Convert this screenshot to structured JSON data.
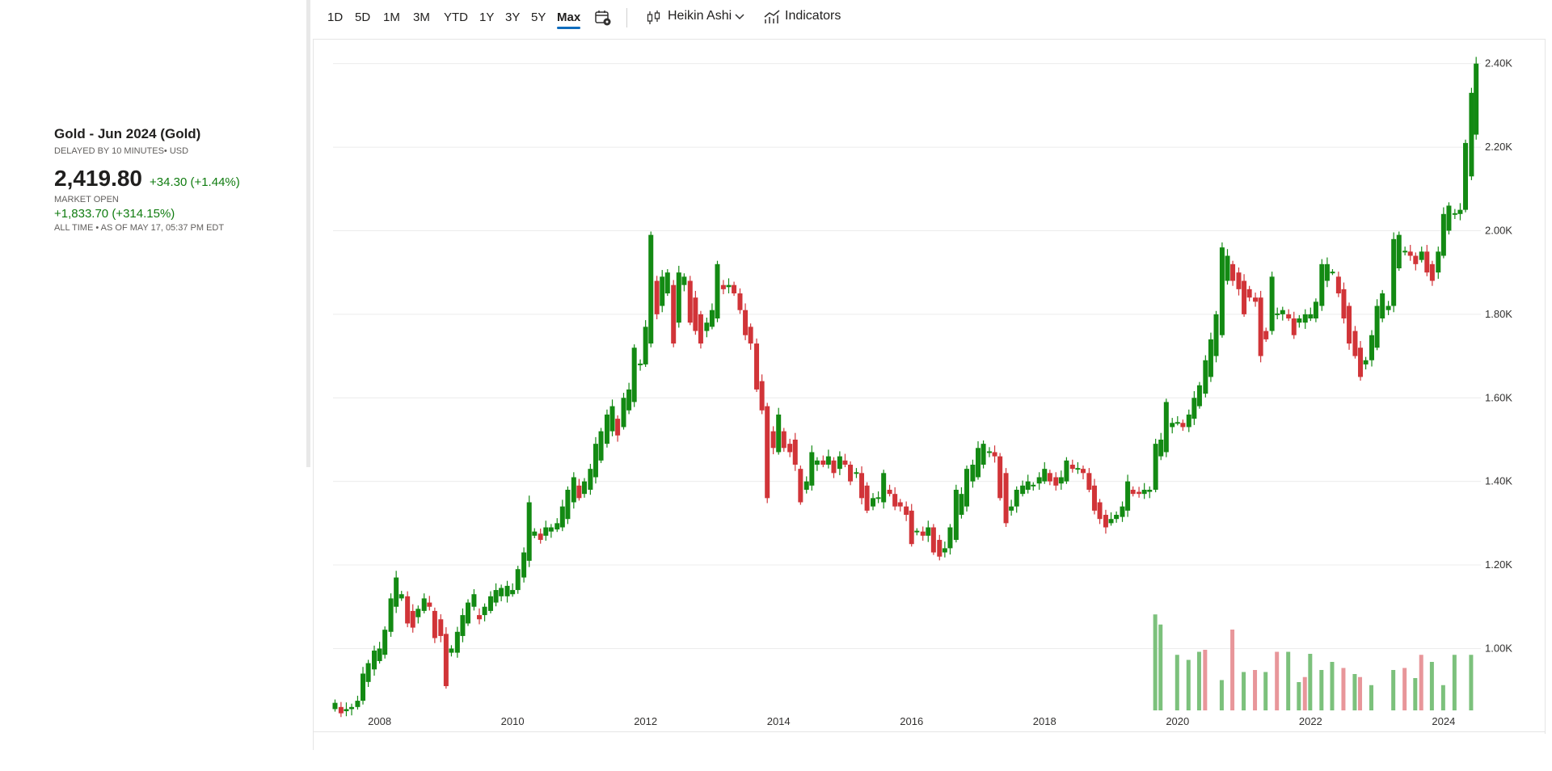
{
  "instrument": {
    "title": "Gold - Jun 2024 (Gold)",
    "subtitle": "DELAYED BY 10 MINUTES• USD",
    "price": "2,419.80",
    "change": "+34.30 (+1.44%)",
    "market_status": "MARKET OPEN",
    "alltime_change": "+1,833.70 (+314.15%)",
    "alltime_note": "ALL TIME • AS OF MAY 17, 05:37 PM EDT"
  },
  "toolbar": {
    "ranges": [
      "1D",
      "5D",
      "1M",
      "3M",
      "YTD",
      "1Y",
      "3Y",
      "5Y",
      "Max"
    ],
    "active_range": "Max",
    "chart_type_icon": "candlestick-icon",
    "chart_type_label": "Heikin Ashi",
    "indicators_icon": "indicators-icon",
    "indicators_label": "Indicators",
    "calendar_icon": "calendar-settings-icon"
  },
  "colors": {
    "up": "#138a13",
    "down": "#d13438",
    "volume_up": "#7cc17c",
    "volume_down": "#e8969a",
    "grid": "#ececec",
    "accent": "#0f6cbd",
    "positive_text": "#107c10"
  },
  "chart_data": {
    "type": "candlestick",
    "subtype": "Heikin Ashi",
    "y_axis_position": "right",
    "ylim": [
      850,
      2440
    ],
    "y_ticks": [
      {
        "value": 1000,
        "label": "1.00K"
      },
      {
        "value": 1200,
        "label": "1.20K"
      },
      {
        "value": 1400,
        "label": "1.40K"
      },
      {
        "value": 1600,
        "label": "1.60K"
      },
      {
        "value": 1800,
        "label": "1.80K"
      },
      {
        "value": 2000,
        "label": "2.00K"
      },
      {
        "value": 2200,
        "label": "2.20K"
      },
      {
        "value": 2400,
        "label": "2.40K"
      }
    ],
    "x_ticks": [
      "2008",
      "2010",
      "2012",
      "2014",
      "2016",
      "2018",
      "2020",
      "2022",
      "2024"
    ],
    "x_range": [
      2007.3,
      2024.5
    ],
    "grid": true,
    "candles": [
      {
        "t": 2007.33,
        "o": 855,
        "c": 870
      },
      {
        "t": 2007.42,
        "o": 860,
        "c": 845
      },
      {
        "t": 2007.5,
        "o": 850,
        "c": 855
      },
      {
        "t": 2007.58,
        "o": 855,
        "c": 860
      },
      {
        "t": 2007.67,
        "o": 860,
        "c": 875
      },
      {
        "t": 2007.75,
        "o": 875,
        "c": 940
      },
      {
        "t": 2007.83,
        "o": 920,
        "c": 965
      },
      {
        "t": 2007.92,
        "o": 950,
        "c": 995
      },
      {
        "t": 2008.0,
        "o": 970,
        "c": 1000
      },
      {
        "t": 2008.08,
        "o": 985,
        "c": 1045
      },
      {
        "t": 2008.17,
        "o": 1040,
        "c": 1120
      },
      {
        "t": 2008.25,
        "o": 1100,
        "c": 1170
      },
      {
        "t": 2008.33,
        "o": 1120,
        "c": 1130
      },
      {
        "t": 2008.42,
        "o": 1125,
        "c": 1060
      },
      {
        "t": 2008.5,
        "o": 1090,
        "c": 1050
      },
      {
        "t": 2008.58,
        "o": 1075,
        "c": 1095
      },
      {
        "t": 2008.67,
        "o": 1090,
        "c": 1120
      },
      {
        "t": 2008.75,
        "o": 1110,
        "c": 1100
      },
      {
        "t": 2008.83,
        "o": 1090,
        "c": 1025
      },
      {
        "t": 2008.92,
        "o": 1070,
        "c": 1030
      },
      {
        "t": 2009.0,
        "o": 1035,
        "c": 910
      },
      {
        "t": 2009.08,
        "o": 990,
        "c": 1000
      },
      {
        "t": 2009.17,
        "o": 990,
        "c": 1040
      },
      {
        "t": 2009.25,
        "o": 1030,
        "c": 1080
      },
      {
        "t": 2009.33,
        "o": 1060,
        "c": 1110
      },
      {
        "t": 2009.42,
        "o": 1100,
        "c": 1130
      },
      {
        "t": 2009.5,
        "o": 1080,
        "c": 1070
      },
      {
        "t": 2009.58,
        "o": 1080,
        "c": 1100
      },
      {
        "t": 2009.67,
        "o": 1090,
        "c": 1125
      },
      {
        "t": 2009.75,
        "o": 1110,
        "c": 1140
      },
      {
        "t": 2009.83,
        "o": 1125,
        "c": 1145
      },
      {
        "t": 2009.92,
        "o": 1125,
        "c": 1150
      },
      {
        "t": 2010.0,
        "o": 1130,
        "c": 1140
      },
      {
        "t": 2010.08,
        "o": 1140,
        "c": 1190
      },
      {
        "t": 2010.17,
        "o": 1170,
        "c": 1230
      },
      {
        "t": 2010.25,
        "o": 1210,
        "c": 1350
      },
      {
        "t": 2010.33,
        "o": 1270,
        "c": 1280
      },
      {
        "t": 2010.42,
        "o": 1275,
        "c": 1260
      },
      {
        "t": 2010.5,
        "o": 1270,
        "c": 1290
      },
      {
        "t": 2010.58,
        "o": 1280,
        "c": 1290
      },
      {
        "t": 2010.67,
        "o": 1285,
        "c": 1300
      },
      {
        "t": 2010.75,
        "o": 1290,
        "c": 1340
      },
      {
        "t": 2010.83,
        "o": 1310,
        "c": 1380
      },
      {
        "t": 2010.92,
        "o": 1350,
        "c": 1410
      },
      {
        "t": 2011.0,
        "o": 1390,
        "c": 1360
      },
      {
        "t": 2011.08,
        "o": 1370,
        "c": 1400
      },
      {
        "t": 2011.17,
        "o": 1380,
        "c": 1430
      },
      {
        "t": 2011.25,
        "o": 1410,
        "c": 1490
      },
      {
        "t": 2011.33,
        "o": 1450,
        "c": 1520
      },
      {
        "t": 2011.42,
        "o": 1490,
        "c": 1560
      },
      {
        "t": 2011.5,
        "o": 1520,
        "c": 1580
      },
      {
        "t": 2011.58,
        "o": 1550,
        "c": 1510
      },
      {
        "t": 2011.67,
        "o": 1530,
        "c": 1600
      },
      {
        "t": 2011.75,
        "o": 1570,
        "c": 1620
      },
      {
        "t": 2011.83,
        "o": 1590,
        "c": 1720
      },
      {
        "t": 2011.92,
        "o": 1680,
        "c": 1680
      },
      {
        "t": 2012.0,
        "o": 1680,
        "c": 1770
      },
      {
        "t": 2012.08,
        "o": 1730,
        "c": 1990
      },
      {
        "t": 2012.17,
        "o": 1880,
        "c": 1800
      },
      {
        "t": 2012.25,
        "o": 1820,
        "c": 1890
      },
      {
        "t": 2012.33,
        "o": 1850,
        "c": 1900
      },
      {
        "t": 2012.42,
        "o": 1870,
        "c": 1730
      },
      {
        "t": 2012.5,
        "o": 1780,
        "c": 1900
      },
      {
        "t": 2012.58,
        "o": 1870,
        "c": 1890
      },
      {
        "t": 2012.67,
        "o": 1880,
        "c": 1780
      },
      {
        "t": 2012.75,
        "o": 1840,
        "c": 1760
      },
      {
        "t": 2012.83,
        "o": 1800,
        "c": 1730
      },
      {
        "t": 2012.92,
        "o": 1760,
        "c": 1780
      },
      {
        "t": 2013.0,
        "o": 1770,
        "c": 1810
      },
      {
        "t": 2013.08,
        "o": 1790,
        "c": 1920
      },
      {
        "t": 2013.17,
        "o": 1870,
        "c": 1860
      },
      {
        "t": 2013.25,
        "o": 1865,
        "c": 1870
      },
      {
        "t": 2013.33,
        "o": 1870,
        "c": 1850
      },
      {
        "t": 2013.42,
        "o": 1850,
        "c": 1810
      },
      {
        "t": 2013.5,
        "o": 1810,
        "c": 1750
      },
      {
        "t": 2013.58,
        "o": 1770,
        "c": 1730
      },
      {
        "t": 2013.67,
        "o": 1730,
        "c": 1620
      },
      {
        "t": 2013.75,
        "o": 1640,
        "c": 1570
      },
      {
        "t": 2013.83,
        "o": 1580,
        "c": 1360
      },
      {
        "t": 2013.92,
        "o": 1520,
        "c": 1480
      },
      {
        "t": 2014.0,
        "o": 1470,
        "c": 1560
      },
      {
        "t": 2014.08,
        "o": 1520,
        "c": 1480
      },
      {
        "t": 2014.17,
        "o": 1490,
        "c": 1470
      },
      {
        "t": 2014.25,
        "o": 1500,
        "c": 1440
      },
      {
        "t": 2014.33,
        "o": 1430,
        "c": 1350
      },
      {
        "t": 2014.42,
        "o": 1380,
        "c": 1400
      },
      {
        "t": 2014.5,
        "o": 1390,
        "c": 1470
      },
      {
        "t": 2014.58,
        "o": 1440,
        "c": 1450
      },
      {
        "t": 2014.67,
        "o": 1450,
        "c": 1440
      },
      {
        "t": 2014.75,
        "o": 1440,
        "c": 1460
      },
      {
        "t": 2014.83,
        "o": 1450,
        "c": 1420
      },
      {
        "t": 2014.92,
        "o": 1430,
        "c": 1460
      },
      {
        "t": 2015.0,
        "o": 1450,
        "c": 1440
      },
      {
        "t": 2015.08,
        "o": 1440,
        "c": 1400
      },
      {
        "t": 2015.17,
        "o": 1420,
        "c": 1420
      },
      {
        "t": 2015.25,
        "o": 1420,
        "c": 1360
      },
      {
        "t": 2015.33,
        "o": 1390,
        "c": 1330
      },
      {
        "t": 2015.42,
        "o": 1340,
        "c": 1360
      },
      {
        "t": 2015.5,
        "o": 1360,
        "c": 1360
      },
      {
        "t": 2015.58,
        "o": 1350,
        "c": 1420
      },
      {
        "t": 2015.67,
        "o": 1380,
        "c": 1370
      },
      {
        "t": 2015.75,
        "o": 1370,
        "c": 1340
      },
      {
        "t": 2015.83,
        "o": 1350,
        "c": 1340
      },
      {
        "t": 2015.92,
        "o": 1340,
        "c": 1320
      },
      {
        "t": 2016.0,
        "o": 1330,
        "c": 1250
      },
      {
        "t": 2016.08,
        "o": 1280,
        "c": 1280
      },
      {
        "t": 2016.17,
        "o": 1280,
        "c": 1270
      },
      {
        "t": 2016.25,
        "o": 1270,
        "c": 1290
      },
      {
        "t": 2016.33,
        "o": 1290,
        "c": 1230
      },
      {
        "t": 2016.42,
        "o": 1260,
        "c": 1220
      },
      {
        "t": 2016.5,
        "o": 1230,
        "c": 1240
      },
      {
        "t": 2016.58,
        "o": 1240,
        "c": 1290
      },
      {
        "t": 2016.67,
        "o": 1260,
        "c": 1380
      },
      {
        "t": 2016.75,
        "o": 1320,
        "c": 1370
      },
      {
        "t": 2016.83,
        "o": 1340,
        "c": 1430
      },
      {
        "t": 2016.92,
        "o": 1400,
        "c": 1440
      },
      {
        "t": 2017.0,
        "o": 1410,
        "c": 1480
      },
      {
        "t": 2017.08,
        "o": 1440,
        "c": 1490
      },
      {
        "t": 2017.17,
        "o": 1470,
        "c": 1470
      },
      {
        "t": 2017.25,
        "o": 1470,
        "c": 1460
      },
      {
        "t": 2017.33,
        "o": 1460,
        "c": 1360
      },
      {
        "t": 2017.42,
        "o": 1420,
        "c": 1300
      },
      {
        "t": 2017.5,
        "o": 1330,
        "c": 1340
      },
      {
        "t": 2017.58,
        "o": 1340,
        "c": 1380
      },
      {
        "t": 2017.67,
        "o": 1370,
        "c": 1390
      },
      {
        "t": 2017.75,
        "o": 1380,
        "c": 1400
      },
      {
        "t": 2017.83,
        "o": 1390,
        "c": 1390
      },
      {
        "t": 2017.92,
        "o": 1395,
        "c": 1410
      },
      {
        "t": 2018.0,
        "o": 1400,
        "c": 1430
      },
      {
        "t": 2018.08,
        "o": 1420,
        "c": 1400
      },
      {
        "t": 2018.17,
        "o": 1410,
        "c": 1390
      },
      {
        "t": 2018.25,
        "o": 1395,
        "c": 1410
      },
      {
        "t": 2018.33,
        "o": 1400,
        "c": 1450
      },
      {
        "t": 2018.42,
        "o": 1440,
        "c": 1430
      },
      {
        "t": 2018.5,
        "o": 1430,
        "c": 1430
      },
      {
        "t": 2018.58,
        "o": 1430,
        "c": 1420
      },
      {
        "t": 2018.67,
        "o": 1420,
        "c": 1380
      },
      {
        "t": 2018.75,
        "o": 1390,
        "c": 1330
      },
      {
        "t": 2018.83,
        "o": 1350,
        "c": 1310
      },
      {
        "t": 2018.92,
        "o": 1320,
        "c": 1290
      },
      {
        "t": 2019.0,
        "o": 1300,
        "c": 1310
      },
      {
        "t": 2019.08,
        "o": 1310,
        "c": 1320
      },
      {
        "t": 2019.17,
        "o": 1315,
        "c": 1340
      },
      {
        "t": 2019.25,
        "o": 1330,
        "c": 1400
      },
      {
        "t": 2019.33,
        "o": 1380,
        "c": 1370
      },
      {
        "t": 2019.42,
        "o": 1375,
        "c": 1370
      },
      {
        "t": 2019.5,
        "o": 1370,
        "c": 1380
      },
      {
        "t": 2019.58,
        "o": 1375,
        "c": 1380
      },
      {
        "t": 2019.67,
        "o": 1380,
        "c": 1490
      },
      {
        "t": 2019.75,
        "o": 1460,
        "c": 1500
      },
      {
        "t": 2019.83,
        "o": 1470,
        "c": 1590
      },
      {
        "t": 2019.92,
        "o": 1530,
        "c": 1540
      },
      {
        "t": 2020.0,
        "o": 1540,
        "c": 1540
      },
      {
        "t": 2020.08,
        "o": 1540,
        "c": 1530
      },
      {
        "t": 2020.17,
        "o": 1530,
        "c": 1560
      },
      {
        "t": 2020.25,
        "o": 1550,
        "c": 1600
      },
      {
        "t": 2020.33,
        "o": 1580,
        "c": 1630
      },
      {
        "t": 2020.42,
        "o": 1610,
        "c": 1690
      },
      {
        "t": 2020.5,
        "o": 1650,
        "c": 1740
      },
      {
        "t": 2020.58,
        "o": 1700,
        "c": 1800
      },
      {
        "t": 2020.67,
        "o": 1750,
        "c": 1960
      },
      {
        "t": 2020.75,
        "o": 1880,
        "c": 1940
      },
      {
        "t": 2020.83,
        "o": 1920,
        "c": 1880
      },
      {
        "t": 2020.92,
        "o": 1900,
        "c": 1860
      },
      {
        "t": 2021.0,
        "o": 1880,
        "c": 1800
      },
      {
        "t": 2021.08,
        "o": 1860,
        "c": 1840
      },
      {
        "t": 2021.17,
        "o": 1840,
        "c": 1830
      },
      {
        "t": 2021.25,
        "o": 1840,
        "c": 1700
      },
      {
        "t": 2021.33,
        "o": 1760,
        "c": 1740
      },
      {
        "t": 2021.42,
        "o": 1760,
        "c": 1890
      },
      {
        "t": 2021.5,
        "o": 1800,
        "c": 1800
      },
      {
        "t": 2021.58,
        "o": 1800,
        "c": 1810
      },
      {
        "t": 2021.67,
        "o": 1800,
        "c": 1790
      },
      {
        "t": 2021.75,
        "o": 1790,
        "c": 1750
      },
      {
        "t": 2021.83,
        "o": 1780,
        "c": 1790
      },
      {
        "t": 2021.92,
        "o": 1780,
        "c": 1800
      },
      {
        "t": 2022.0,
        "o": 1790,
        "c": 1800
      },
      {
        "t": 2022.08,
        "o": 1790,
        "c": 1830
      },
      {
        "t": 2022.17,
        "o": 1820,
        "c": 1920
      },
      {
        "t": 2022.25,
        "o": 1880,
        "c": 1920
      },
      {
        "t": 2022.33,
        "o": 1900,
        "c": 1900
      },
      {
        "t": 2022.42,
        "o": 1890,
        "c": 1850
      },
      {
        "t": 2022.5,
        "o": 1860,
        "c": 1790
      },
      {
        "t": 2022.58,
        "o": 1820,
        "c": 1730
      },
      {
        "t": 2022.67,
        "o": 1760,
        "c": 1700
      },
      {
        "t": 2022.75,
        "o": 1720,
        "c": 1650
      },
      {
        "t": 2022.83,
        "o": 1680,
        "c": 1690
      },
      {
        "t": 2022.92,
        "o": 1690,
        "c": 1750
      },
      {
        "t": 2023.0,
        "o": 1720,
        "c": 1820
      },
      {
        "t": 2023.08,
        "o": 1790,
        "c": 1850
      },
      {
        "t": 2023.17,
        "o": 1810,
        "c": 1820
      },
      {
        "t": 2023.25,
        "o": 1820,
        "c": 1980
      },
      {
        "t": 2023.33,
        "o": 1910,
        "c": 1990
      },
      {
        "t": 2023.42,
        "o": 1950,
        "c": 1950
      },
      {
        "t": 2023.5,
        "o": 1950,
        "c": 1940
      },
      {
        "t": 2023.58,
        "o": 1940,
        "c": 1920
      },
      {
        "t": 2023.67,
        "o": 1930,
        "c": 1950
      },
      {
        "t": 2023.75,
        "o": 1950,
        "c": 1900
      },
      {
        "t": 2023.83,
        "o": 1920,
        "c": 1880
      },
      {
        "t": 2023.92,
        "o": 1900,
        "c": 1950
      },
      {
        "t": 2024.0,
        "o": 1940,
        "c": 2040
      },
      {
        "t": 2024.08,
        "o": 2000,
        "c": 2060
      },
      {
        "t": 2024.17,
        "o": 2040,
        "c": 2040
      },
      {
        "t": 2024.25,
        "o": 2040,
        "c": 2050
      },
      {
        "t": 2024.33,
        "o": 2050,
        "c": 2210
      },
      {
        "t": 2024.42,
        "o": 2130,
        "c": 2330
      },
      {
        "t": 2024.49,
        "o": 2230,
        "c": 2400
      }
    ],
    "volume": [
      {
        "t": 2019.67,
        "v": 0.95,
        "up": true
      },
      {
        "t": 2019.75,
        "v": 0.85,
        "up": true
      },
      {
        "t": 2020.0,
        "v": 0.55,
        "up": true
      },
      {
        "t": 2020.17,
        "v": 0.5,
        "up": true
      },
      {
        "t": 2020.33,
        "v": 0.58,
        "up": true
      },
      {
        "t": 2020.42,
        "v": 0.6,
        "up": false
      },
      {
        "t": 2020.67,
        "v": 0.3,
        "up": true
      },
      {
        "t": 2020.83,
        "v": 0.8,
        "up": false
      },
      {
        "t": 2021.0,
        "v": 0.38,
        "up": true
      },
      {
        "t": 2021.17,
        "v": 0.4,
        "up": false
      },
      {
        "t": 2021.33,
        "v": 0.38,
        "up": true
      },
      {
        "t": 2021.5,
        "v": 0.58,
        "up": false
      },
      {
        "t": 2021.67,
        "v": 0.58,
        "up": true
      },
      {
        "t": 2021.83,
        "v": 0.28,
        "up": true
      },
      {
        "t": 2021.92,
        "v": 0.33,
        "up": false
      },
      {
        "t": 2022.0,
        "v": 0.56,
        "up": true
      },
      {
        "t": 2022.17,
        "v": 0.4,
        "up": true
      },
      {
        "t": 2022.33,
        "v": 0.48,
        "up": true
      },
      {
        "t": 2022.5,
        "v": 0.42,
        "up": false
      },
      {
        "t": 2022.67,
        "v": 0.36,
        "up": true
      },
      {
        "t": 2022.75,
        "v": 0.33,
        "up": false
      },
      {
        "t": 2022.92,
        "v": 0.25,
        "up": true
      },
      {
        "t": 2023.25,
        "v": 0.4,
        "up": true
      },
      {
        "t": 2023.42,
        "v": 0.42,
        "up": false
      },
      {
        "t": 2023.58,
        "v": 0.32,
        "up": true
      },
      {
        "t": 2023.67,
        "v": 0.55,
        "up": false
      },
      {
        "t": 2023.83,
        "v": 0.48,
        "up": true
      },
      {
        "t": 2024.0,
        "v": 0.25,
        "up": true
      },
      {
        "t": 2024.17,
        "v": 0.55,
        "up": true
      },
      {
        "t": 2024.42,
        "v": 0.55,
        "up": true
      }
    ]
  }
}
